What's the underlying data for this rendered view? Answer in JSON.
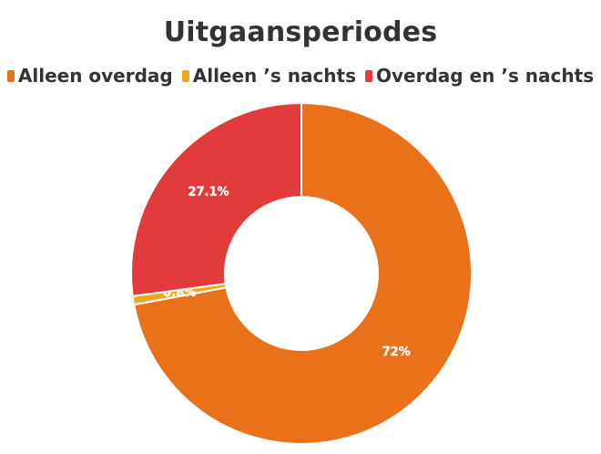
{
  "chart_data": {
    "type": "pie",
    "title": "Uitgaansperiodes",
    "categories": [
      "Alleen overdag",
      "Alleen ’s nachts",
      "Overdag en ’s nachts"
    ],
    "values": [
      72,
      0.8,
      27.1
    ],
    "data_labels": [
      "72%",
      "0.8%",
      "27.1%"
    ],
    "colors": [
      "#E8711A",
      "#F2A71B",
      "#E23B3B"
    ],
    "donut": true,
    "legend_position": "top"
  }
}
